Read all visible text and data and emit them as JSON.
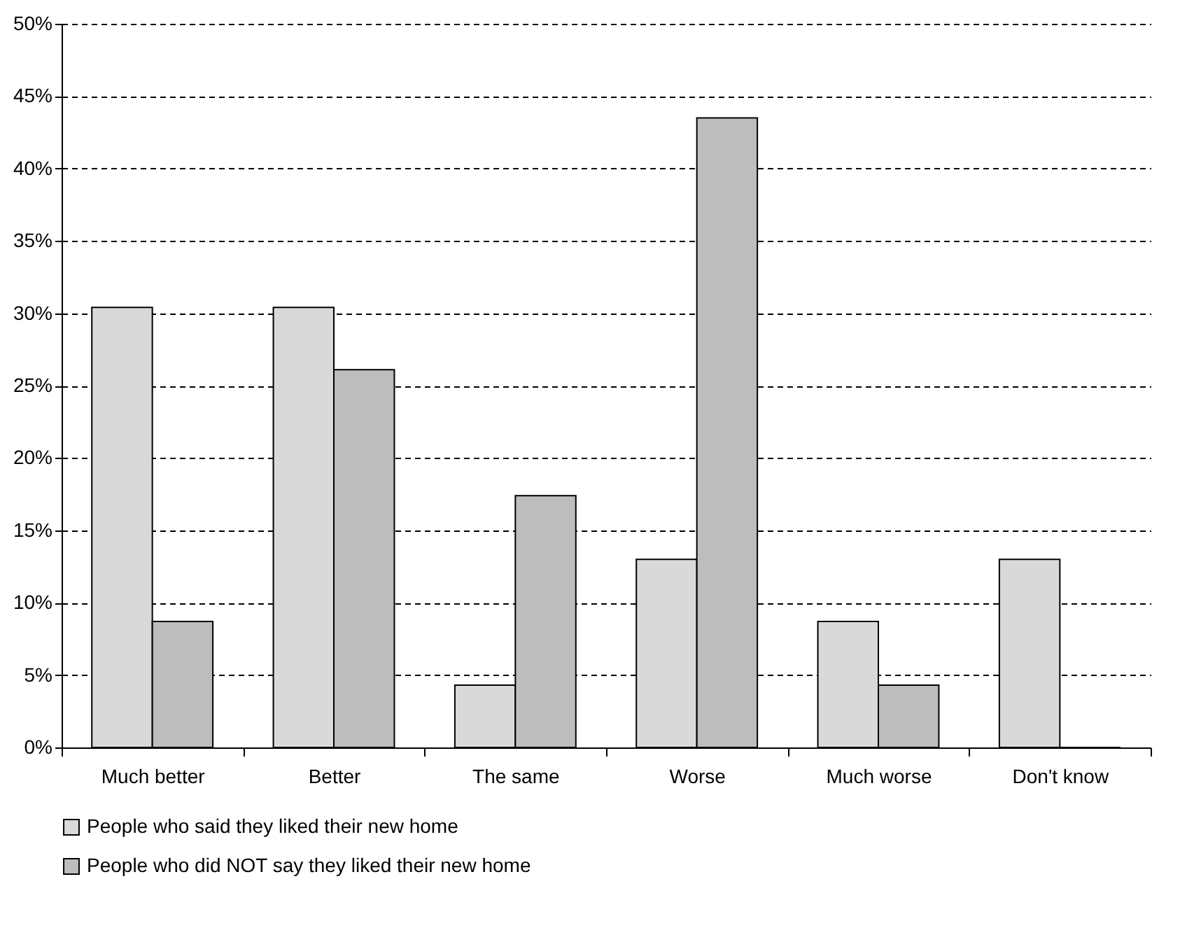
{
  "chart_data": {
    "type": "bar",
    "categories": [
      "Much better",
      "Better",
      "The same",
      "Worse",
      "Much worse",
      "Don't know"
    ],
    "series": [
      {
        "name": "People who said they liked their new home",
        "color": "#d9d9d9",
        "values": [
          30.4,
          30.4,
          4.3,
          13.0,
          8.7,
          13.0
        ]
      },
      {
        "name": "People who did NOT say they liked their new home",
        "color": "#bdbdbd",
        "values": [
          8.7,
          26.1,
          17.4,
          43.5,
          4.3,
          0
        ]
      }
    ],
    "ylim": [
      0,
      50
    ],
    "yticks": [
      {
        "value": 0,
        "label": "0%"
      },
      {
        "value": 5,
        "label": "5%"
      },
      {
        "value": 10,
        "label": "10%"
      },
      {
        "value": 15,
        "label": "15%"
      },
      {
        "value": 20,
        "label": "20%"
      },
      {
        "value": 25,
        "label": "25%"
      },
      {
        "value": 30,
        "label": "30%"
      },
      {
        "value": 35,
        "label": "35%"
      },
      {
        "value": 40,
        "label": "40%"
      },
      {
        "value": 45,
        "label": "45%"
      },
      {
        "value": 50,
        "label": "50%"
      }
    ],
    "grid": "y",
    "legend": "bottom"
  }
}
